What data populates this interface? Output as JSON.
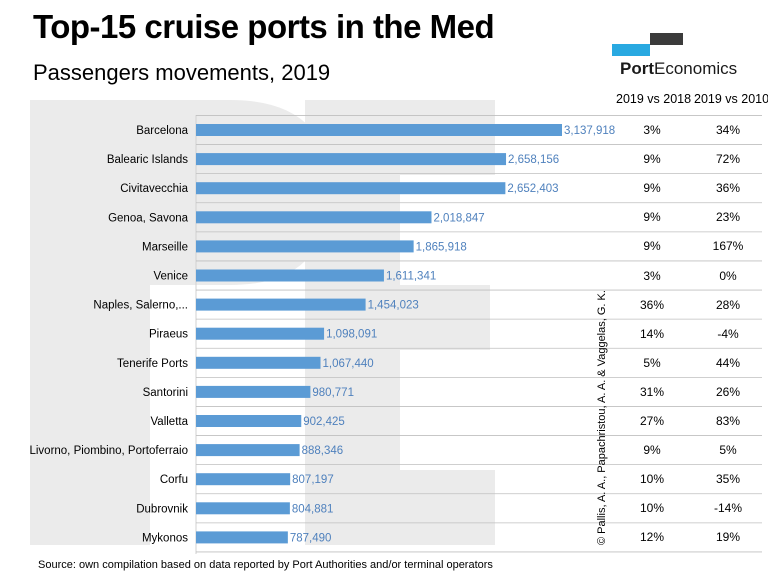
{
  "header": {
    "title": "Top-15 cruise ports in the Med",
    "subtitle": "Passengers movements, 2019"
  },
  "logo": {
    "brand_bold": "Port",
    "brand_rest": "Economics"
  },
  "table": {
    "col1": "2019 vs 2018",
    "col2": "2019 vs 2010",
    "rows": [
      [
        "3%",
        "34%"
      ],
      [
        "9%",
        "72%"
      ],
      [
        "9%",
        "36%"
      ],
      [
        "9%",
        "23%"
      ],
      [
        "9%",
        "167%"
      ],
      [
        "3%",
        "0%"
      ],
      [
        "36%",
        "28%"
      ],
      [
        "14%",
        "-4%"
      ],
      [
        "5%",
        "44%"
      ],
      [
        "31%",
        "26%"
      ],
      [
        "27%",
        "83%"
      ],
      [
        "9%",
        "5%"
      ],
      [
        "10%",
        "35%"
      ],
      [
        "10%",
        "-14%"
      ],
      [
        "12%",
        "19%"
      ]
    ]
  },
  "copyright": "© Pallis, A. A., Papachristou, A. A. & Vaggelas, G. K.",
  "source": "Source: own compilation based on data reported by Port Authorities and/or terminal operators",
  "colors": {
    "bar": "#5b9bd5",
    "label": "#4f81bd",
    "watermark": "#ebebeb",
    "logo_blue": "#29a9e1",
    "logo_dark": "#3b3b3b"
  },
  "chart_data": {
    "type": "bar",
    "orientation": "horizontal",
    "categories": [
      "Barcelona",
      "Balearic Islands",
      "Civitavecchia",
      "Genoa, Savona",
      "Marseille",
      "Venice",
      "Naples, Salerno,...",
      "Piraeus",
      "Tenerife Ports",
      "Santorini",
      "Valletta",
      "Livorno, Piombino, Portoferraio",
      "Corfu",
      "Dubrovnik",
      "Mykonos"
    ],
    "values": [
      3137918,
      2658156,
      2652403,
      2018847,
      1865918,
      1611341,
      1454023,
      1098091,
      1067440,
      980771,
      902425,
      888346,
      807197,
      804881,
      787490
    ],
    "value_labels": [
      "3,137,918",
      "2,658,156",
      "2,652,403",
      "2,018,847",
      "1,865,918",
      "1,611,341",
      "1,454,023",
      "1,098,091",
      "1,067,440",
      "980,771",
      "902,425",
      "888,346",
      "807,197",
      "804,881",
      "787,490"
    ],
    "xlim": [
      0,
      3137918
    ],
    "grid": true,
    "legend": "none"
  }
}
